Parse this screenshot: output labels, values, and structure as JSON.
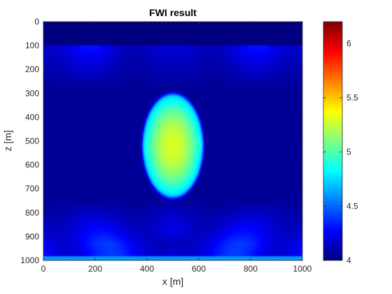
{
  "chart_data": {
    "type": "heatmap",
    "title": "FWI result",
    "xlabel": "x [m]",
    "ylabel": "z [m]",
    "xlim": [
      0,
      1000
    ],
    "ylim": [
      0,
      1000
    ],
    "y_reversed": true,
    "xticks": [
      "0",
      "200",
      "400",
      "600",
      "800",
      "1000"
    ],
    "yticks": [
      "0",
      "100",
      "200",
      "300",
      "400",
      "500",
      "600",
      "700",
      "800",
      "900",
      "1000"
    ],
    "colormap": "jet",
    "clim": [
      4.0,
      6.2
    ],
    "colorbar_ticks": [
      "4",
      "4.5",
      "5",
      "5.5",
      "6"
    ],
    "grid": false,
    "field": {
      "background_value": 4.05,
      "top_water_layer": {
        "z_max": 100,
        "value": 4.0
      },
      "anomaly": {
        "center_x": 500,
        "center_z": 520,
        "radius_x": 110,
        "radius_z": 205,
        "peak_value": 5.3,
        "edge_value": 4.75
      },
      "side_lobes": [
        {
          "x": 395,
          "z": 525,
          "value": 5.35
        },
        {
          "x": 605,
          "z": 515,
          "value": 5.35
        }
      ],
      "shallow_artifacts": {
        "z_range": [
          100,
          280
        ],
        "value": 4.4
      },
      "deep_artifacts": {
        "z_range": [
          750,
          1000
        ],
        "value": 4.4
      },
      "bottom_strip": {
        "z_range": [
          985,
          1000
        ],
        "value": 4.6
      }
    }
  }
}
